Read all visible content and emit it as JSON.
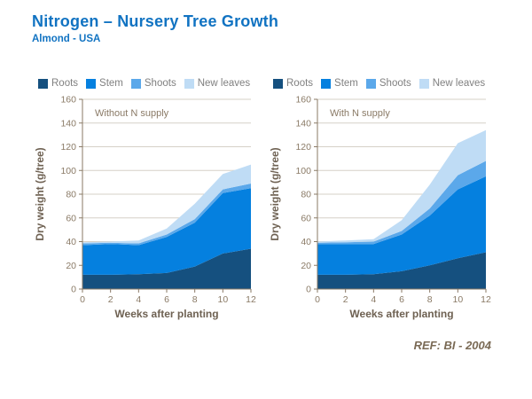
{
  "header": {
    "title": "Nitrogen – Nursery Tree Growth",
    "subtitle": "Almond - USA"
  },
  "legend": [
    {
      "label": "Roots",
      "color": "#15507F"
    },
    {
      "label": "Stem",
      "color": "#0580DF"
    },
    {
      "label": "Shoots",
      "color": "#5BA8EA"
    },
    {
      "label": "New leaves",
      "color": "#BFDCF5"
    }
  ],
  "footer": {
    "ref_label": "REF:  BI - 2004"
  },
  "colors": {
    "title_blue": "#1173C2",
    "legend_text": "#808080",
    "tick_text": "#8A7A66",
    "axis_line": "#8A7A66",
    "axis_title_text": "#6E6152",
    "gridline": "#D5D0C7",
    "ref_text": "#7A6A55",
    "background": "#FFFFFF"
  },
  "chart_data": [
    {
      "type": "area",
      "stacked": true,
      "annotation": "Without N supply",
      "xlabel": "Weeks after planting",
      "ylabel": "Dry weight (g/tree)",
      "x": [
        0,
        2,
        4,
        6,
        8,
        10,
        12
      ],
      "xlim": [
        0,
        12
      ],
      "ylim": [
        0,
        160
      ],
      "ytick_step": 20,
      "grid": true,
      "legend_position": "top",
      "series": [
        {
          "name": "Roots",
          "values": [
            12,
            12,
            12.5,
            13.5,
            19,
            30,
            34
          ]
        },
        {
          "name": "Stem",
          "values": [
            25,
            26,
            24.5,
            30.5,
            37,
            51,
            51
          ]
        },
        {
          "name": "Shoots",
          "values": [
            1.5,
            1,
            1.5,
            2,
            3,
            3,
            4
          ]
        },
        {
          "name": "New leaves",
          "values": [
            1,
            1,
            2.5,
            5,
            13,
            13,
            16
          ]
        }
      ]
    },
    {
      "type": "area",
      "stacked": true,
      "annotation": "With N supply",
      "xlabel": "Weeks after planting",
      "ylabel": "Dry weight (g/tree)",
      "x": [
        0,
        2,
        4,
        6,
        8,
        10,
        12
      ],
      "xlim": [
        0,
        12
      ],
      "ylim": [
        0,
        160
      ],
      "ytick_step": 20,
      "grid": true,
      "legend_position": "top",
      "series": [
        {
          "name": "Roots",
          "values": [
            12,
            12,
            12.5,
            15,
            20,
            26,
            31
          ]
        },
        {
          "name": "Stem",
          "values": [
            26,
            26,
            25.5,
            31,
            42,
            58,
            64
          ]
        },
        {
          "name": "Shoots",
          "values": [
            1,
            1.5,
            2,
            3,
            6,
            12,
            13
          ]
        },
        {
          "name": "New leaves",
          "values": [
            1,
            1.5,
            2,
            9,
            20,
            27,
            26
          ]
        }
      ]
    }
  ]
}
